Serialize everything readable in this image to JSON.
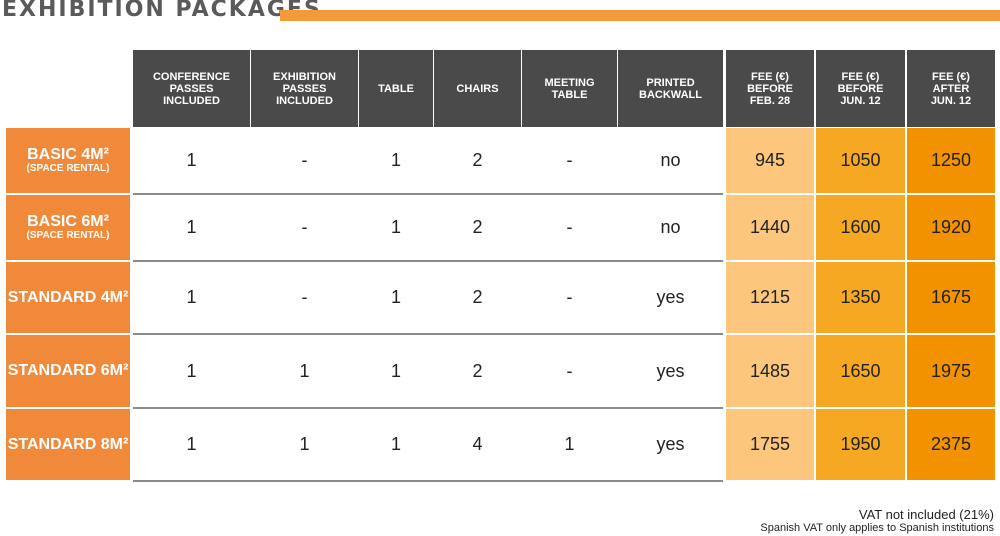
{
  "header": {
    "title": "EXHIBITION PACKAGES"
  },
  "table": {
    "columns": [
      [
        "CONFERENCE",
        "PASSES",
        "INCLUDED"
      ],
      [
        "EXHIBITION",
        "PASSES",
        "INCLUDED"
      ],
      [
        "TABLE"
      ],
      [
        "CHAIRS"
      ],
      [
        "MEETING",
        "TABLE"
      ],
      [
        "PRINTED",
        "BACKWALL"
      ],
      [
        "FEE (€)",
        "BEFORE",
        "FEB. 28"
      ],
      [
        "FEE (€)",
        "BEFORE",
        "JUN. 12"
      ],
      [
        "FEE (€)",
        "AFTER",
        "JUN. 12"
      ]
    ],
    "rows": [
      {
        "label": "BASIC 4M²",
        "sublabel": "(SPACE RENTAL)",
        "cells": [
          "1",
          "-",
          "1",
          "2",
          "-",
          "no",
          "945",
          "1050",
          "1250"
        ]
      },
      {
        "label": "BASIC 6M²",
        "sublabel": "(SPACE RENTAL)",
        "cells": [
          "1",
          "-",
          "1",
          "2",
          "-",
          "no",
          "1440",
          "1600",
          "1920"
        ]
      },
      {
        "label": "STANDARD 4M²",
        "cells": [
          "1",
          "-",
          "1",
          "2",
          "-",
          "yes",
          "1215",
          "1350",
          "1675"
        ]
      },
      {
        "label": "STANDARD 6M²",
        "cells": [
          "1",
          "1",
          "1",
          "2",
          "-",
          "yes",
          "1485",
          "1650",
          "1975"
        ]
      },
      {
        "label": "STANDARD 8M²",
        "cells": [
          "1",
          "1",
          "1",
          "4",
          "1",
          "yes",
          "1755",
          "1950",
          "2375"
        ]
      }
    ]
  },
  "footer": {
    "note": "VAT not included (21%)",
    "subnote": "Spanish VAT only applies to Spanish institutions"
  }
}
